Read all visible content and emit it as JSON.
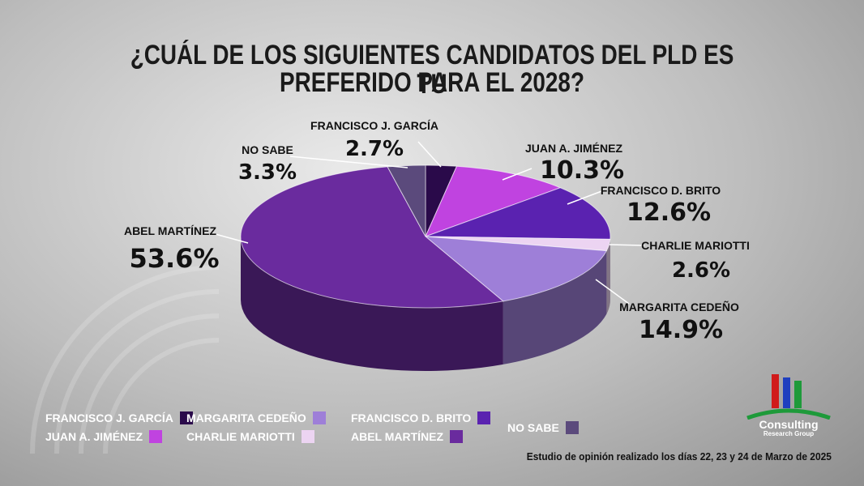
{
  "title_line1": "¿CUÁL DE LOS SIGUIENTES CANDIDATOS DEL PLD ES TU",
  "title_line2": "PREFERIDO PARA EL 2028?",
  "chart_data": {
    "type": "pie",
    "title": "¿CUÁL DE LOS SIGUIENTES CANDIDATOS DEL PLD ES TU PREFERIDO PARA EL 2028?",
    "slices": [
      {
        "label": "FRANCISCO J. GARCÍA",
        "value": 2.7,
        "display": "2.7%",
        "color": "#2a0a4a"
      },
      {
        "label": "JUAN A. JIMÉNEZ",
        "value": 10.3,
        "display": "10.3%",
        "color": "#c043e0"
      },
      {
        "label": "FRANCISCO D. BRITO",
        "value": 12.6,
        "display": "12.6%",
        "color": "#5a22b0"
      },
      {
        "label": "CHARLIE MARIOTTI",
        "value": 2.6,
        "display": "2.6%",
        "color": "#ecd4f2"
      },
      {
        "label": "MARGARITA CEDEÑO",
        "value": 14.9,
        "display": "14.9%",
        "color": "#9e7fd8"
      },
      {
        "label": "ABEL MARTÍNEZ",
        "value": 53.6,
        "display": "53.6%",
        "color": "#6a2b9e"
      },
      {
        "label": "NO SABE",
        "value": 3.3,
        "display": "3.3%",
        "color": "#5b4a7c"
      }
    ]
  },
  "legend": [
    {
      "label": "FRANCISCO J. GARCÍA",
      "color": "#2a0a4a"
    },
    {
      "label": "JUAN A. JIMÉNEZ",
      "color": "#c043e0"
    },
    {
      "label": "MARGARITA CEDEÑO",
      "color": "#9e7fd8"
    },
    {
      "label": "CHARLIE MARIOTTI",
      "color": "#ecd4f2"
    },
    {
      "label": "FRANCISCO D. BRITO",
      "color": "#5a22b0"
    },
    {
      "label": "ABEL MARTÍNEZ",
      "color": "#6a2b9e"
    },
    {
      "label": "NO SABE",
      "color": "#5b4a7c"
    }
  ],
  "footnote": "Estudio de opinión realizado los días 22, 23 y 24 de Marzo de 2025",
  "logo": {
    "name": "Consulting",
    "sub": "Research Group"
  }
}
